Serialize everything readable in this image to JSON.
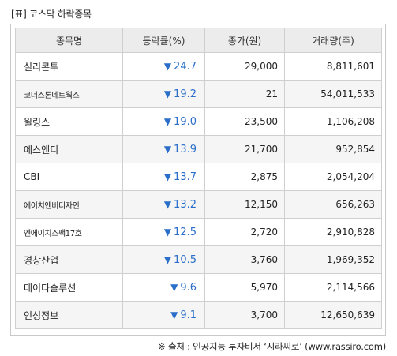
{
  "title": "[표] 코스닥 하락종목",
  "table": {
    "headers": [
      "종목명",
      "등락률(%)",
      "종가(원)",
      "거래량(주)"
    ],
    "change_arrow": "▼",
    "rows": [
      {
        "name": "실리콘투",
        "change": "24.7",
        "price": "29,000",
        "volume": "8,811,601"
      },
      {
        "name": "코너스톤네트웍스",
        "change": "19.2",
        "price": "21",
        "volume": "54,011,533"
      },
      {
        "name": "윌링스",
        "change": "19.0",
        "price": "23,500",
        "volume": "1,106,208"
      },
      {
        "name": "에스앤디",
        "change": "13.9",
        "price": "21,700",
        "volume": "952,854"
      },
      {
        "name": "CBI",
        "change": "13.7",
        "price": "2,875",
        "volume": "2,054,204"
      },
      {
        "name": "에이치엔비디자인",
        "change": "13.2",
        "price": "12,150",
        "volume": "656,263"
      },
      {
        "name": "엔에이치스팩17호",
        "change": "12.5",
        "price": "2,720",
        "volume": "2,910,828"
      },
      {
        "name": "경창산업",
        "change": "10.5",
        "price": "3,760",
        "volume": "1,969,352"
      },
      {
        "name": "데이타솔루션",
        "change": "9.6",
        "price": "5,970",
        "volume": "2,114,566"
      },
      {
        "name": "인성정보",
        "change": "9.1",
        "price": "3,700",
        "volume": "12,650,639"
      }
    ]
  },
  "source": "※ 출처 : 인공지능 투자비서 ‘시라씨로’ (www.rassiro.com)",
  "colors": {
    "down": "#2a6ec9",
    "header_bg": "#ececec",
    "stripe_bg": "#f5f5f5"
  }
}
